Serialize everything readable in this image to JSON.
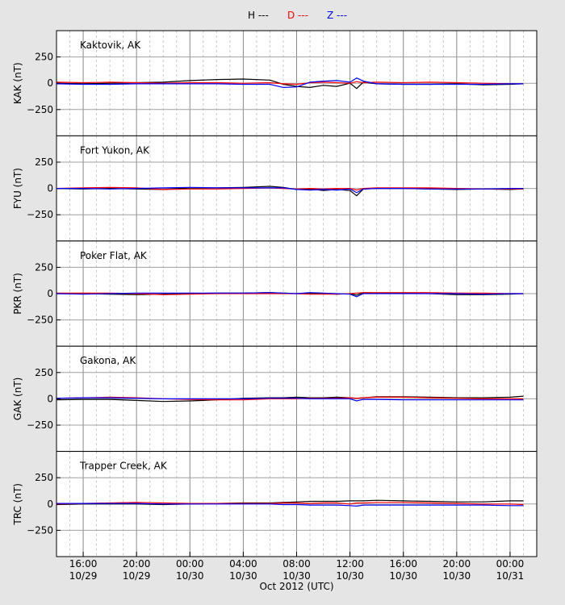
{
  "legend": [
    {
      "label": "H ---",
      "color": "#000000"
    },
    {
      "label": "D ---",
      "color": "#ff0000"
    },
    {
      "label": "Z ---",
      "color": "#0000ff"
    }
  ],
  "xaxis": {
    "label": "Oct 2012 (UTC)",
    "ticks": [
      {
        "time": "16:00",
        "date": "10/29"
      },
      {
        "time": "20:00",
        "date": "10/29"
      },
      {
        "time": "00:00",
        "date": "10/30"
      },
      {
        "time": "04:00",
        "date": "10/30"
      },
      {
        "time": "08:00",
        "date": "10/30"
      },
      {
        "time": "12:00",
        "date": "10/30"
      },
      {
        "time": "16:00",
        "date": "10/30"
      },
      {
        "time": "20:00",
        "date": "10/30"
      },
      {
        "time": "00:00",
        "date": "10/31"
      }
    ]
  },
  "yaxis": {
    "ticks": [
      "250",
      "0",
      "−250"
    ]
  },
  "chart_data": {
    "type": "line",
    "title": "",
    "xlabel": "Oct 2012 (UTC)",
    "x_range_hours": [
      "2012-10-29 14:00",
      "2012-10-31 02:00"
    ],
    "x_hours_from_start": [
      0,
      2,
      4,
      6,
      8,
      10,
      12,
      14,
      16,
      17,
      18,
      19,
      20,
      21,
      22,
      22.5,
      23,
      24,
      26,
      28,
      30,
      32,
      34,
      35
    ],
    "ylim": [
      -500,
      500
    ],
    "legend_position": "top-center",
    "grid": true,
    "panels": [
      {
        "station": "Kaktovik, AK",
        "ylabel": "KAK (nT)",
        "series": [
          {
            "name": "H",
            "color": "#000000",
            "values": [
              0,
              -5,
              0,
              5,
              10,
              25,
              35,
              40,
              30,
              -10,
              -30,
              -40,
              -20,
              -30,
              0,
              -50,
              10,
              -5,
              -10,
              -10,
              -5,
              -15,
              -10,
              -5
            ]
          },
          {
            "name": "D",
            "color": "#ff0000",
            "values": [
              10,
              5,
              10,
              5,
              0,
              5,
              5,
              0,
              5,
              -5,
              -10,
              5,
              10,
              5,
              0,
              15,
              5,
              10,
              5,
              10,
              5,
              0,
              -5,
              -5
            ]
          },
          {
            "name": "Z",
            "color": "#0000ff",
            "values": [
              -5,
              -10,
              -10,
              -5,
              -5,
              -5,
              -5,
              -10,
              -10,
              -40,
              -35,
              10,
              20,
              25,
              10,
              50,
              20,
              -5,
              -10,
              -10,
              -10,
              -10,
              -5,
              -5
            ]
          }
        ]
      },
      {
        "station": "Fort Yukon, AK",
        "ylabel": "FYU (nT)",
        "series": [
          {
            "name": "H",
            "color": "#000000",
            "values": [
              0,
              -5,
              0,
              -5,
              -10,
              5,
              5,
              10,
              20,
              10,
              -10,
              -5,
              -20,
              -10,
              -20,
              -70,
              -5,
              0,
              0,
              -5,
              -10,
              -5,
              -10,
              -5
            ]
          },
          {
            "name": "D",
            "color": "#ff0000",
            "values": [
              0,
              5,
              10,
              5,
              -10,
              -5,
              -5,
              0,
              5,
              0,
              -5,
              0,
              -5,
              0,
              0,
              -15,
              0,
              5,
              5,
              5,
              0,
              -5,
              -5,
              -5
            ]
          },
          {
            "name": "Z",
            "color": "#0000ff",
            "values": [
              0,
              0,
              -5,
              0,
              5,
              10,
              5,
              5,
              5,
              5,
              -10,
              -15,
              -10,
              -15,
              -5,
              -40,
              -5,
              0,
              0,
              -5,
              -5,
              -5,
              0,
              0
            ]
          }
        ]
      },
      {
        "station": "Poker Flat, AK",
        "ylabel": "PKR (nT)",
        "series": [
          {
            "name": "H",
            "color": "#000000",
            "values": [
              0,
              0,
              -5,
              -10,
              -5,
              0,
              5,
              5,
              10,
              5,
              0,
              0,
              0,
              -5,
              0,
              -15,
              10,
              5,
              5,
              0,
              -10,
              -10,
              -5,
              0
            ]
          },
          {
            "name": "D",
            "color": "#ff0000",
            "values": [
              5,
              5,
              5,
              0,
              -10,
              -5,
              0,
              0,
              0,
              0,
              0,
              -5,
              -5,
              -5,
              0,
              5,
              10,
              10,
              10,
              10,
              5,
              5,
              0,
              0
            ]
          },
          {
            "name": "Z",
            "color": "#0000ff",
            "values": [
              0,
              -5,
              0,
              5,
              5,
              5,
              5,
              5,
              10,
              5,
              0,
              10,
              5,
              0,
              -5,
              -30,
              0,
              0,
              0,
              0,
              0,
              -5,
              0,
              0
            ]
          }
        ]
      },
      {
        "station": "Gakona, AK",
        "ylabel": "GAK (nT)",
        "series": [
          {
            "name": "H",
            "color": "#000000",
            "values": [
              -10,
              -5,
              -5,
              -15,
              -25,
              -20,
              -10,
              5,
              10,
              10,
              15,
              10,
              10,
              15,
              10,
              5,
              10,
              20,
              20,
              15,
              10,
              10,
              15,
              25
            ]
          },
          {
            "name": "D",
            "color": "#ff0000",
            "values": [
              5,
              10,
              15,
              10,
              0,
              -5,
              -10,
              -10,
              0,
              0,
              0,
              5,
              5,
              5,
              10,
              5,
              10,
              15,
              15,
              10,
              5,
              0,
              0,
              0
            ]
          },
          {
            "name": "Z",
            "color": "#0000ff",
            "values": [
              5,
              10,
              10,
              5,
              0,
              0,
              0,
              0,
              5,
              5,
              5,
              0,
              0,
              0,
              0,
              -20,
              -5,
              -5,
              -10,
              -10,
              -10,
              -10,
              -10,
              -10
            ]
          }
        ]
      },
      {
        "station": "Trapper Creek, AK",
        "ylabel": "TRC (nT)",
        "series": [
          {
            "name": "H",
            "color": "#000000",
            "values": [
              -5,
              0,
              0,
              0,
              -5,
              0,
              5,
              10,
              10,
              15,
              20,
              25,
              25,
              25,
              30,
              30,
              30,
              35,
              30,
              25,
              20,
              20,
              30,
              30
            ]
          },
          {
            "name": "D",
            "color": "#ff0000",
            "values": [
              0,
              5,
              10,
              15,
              10,
              5,
              5,
              5,
              5,
              10,
              10,
              5,
              10,
              10,
              0,
              10,
              10,
              15,
              15,
              10,
              5,
              0,
              0,
              -5
            ]
          },
          {
            "name": "Z",
            "color": "#0000ff",
            "values": [
              5,
              5,
              5,
              5,
              0,
              0,
              0,
              0,
              0,
              -5,
              -5,
              -10,
              -10,
              -10,
              -15,
              -20,
              -10,
              -10,
              -10,
              -10,
              -10,
              -10,
              -15,
              -15
            ]
          }
        ]
      }
    ]
  }
}
